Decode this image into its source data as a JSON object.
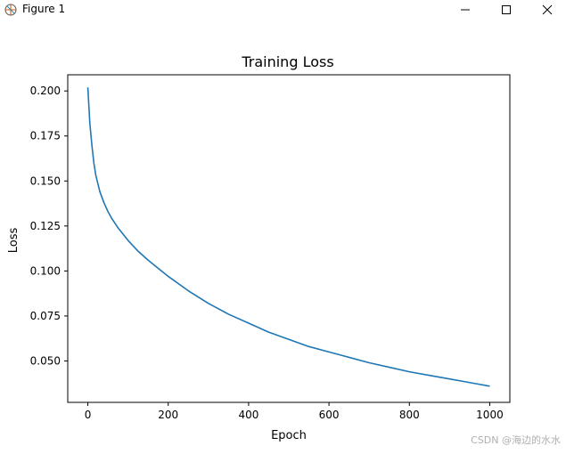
{
  "window": {
    "title": "Figure 1",
    "controls": [
      "minimize-icon",
      "maximize-icon",
      "close-icon"
    ]
  },
  "watermark": "CSDN @海边的水水",
  "colors": {
    "line": "#1f77b4",
    "axes": "#000000",
    "background": "#ffffff"
  },
  "chart_data": {
    "type": "line",
    "title": "Training Loss",
    "xlabel": "Epoch",
    "ylabel": "Loss",
    "xlim": [
      -50,
      1050
    ],
    "ylim": [
      0.027,
      0.209
    ],
    "x_ticks": [
      0,
      200,
      400,
      600,
      800,
      1000
    ],
    "y_ticks": [
      0.05,
      0.075,
      0.1,
      0.125,
      0.15,
      0.175,
      0.2
    ],
    "x_tick_labels": [
      "0",
      "200",
      "400",
      "600",
      "800",
      "1000"
    ],
    "y_tick_labels": [
      "0.050",
      "0.075",
      "0.100",
      "0.125",
      "0.150",
      "0.175",
      "0.200"
    ],
    "grid": false,
    "series": [
      {
        "x": [
          0,
          5,
          10,
          15,
          20,
          30,
          40,
          50,
          60,
          75,
          100,
          125,
          150,
          200,
          250,
          300,
          350,
          400,
          450,
          500,
          550,
          600,
          650,
          700,
          750,
          800,
          850,
          900,
          950,
          1000
        ],
        "values": [
          0.202,
          0.182,
          0.17,
          0.16,
          0.153,
          0.144,
          0.138,
          0.133,
          0.129,
          0.124,
          0.117,
          0.111,
          0.106,
          0.097,
          0.089,
          0.082,
          0.076,
          0.071,
          0.066,
          0.062,
          0.058,
          0.055,
          0.052,
          0.049,
          0.0465,
          0.044,
          0.042,
          0.04,
          0.038,
          0.036
        ]
      }
    ]
  }
}
